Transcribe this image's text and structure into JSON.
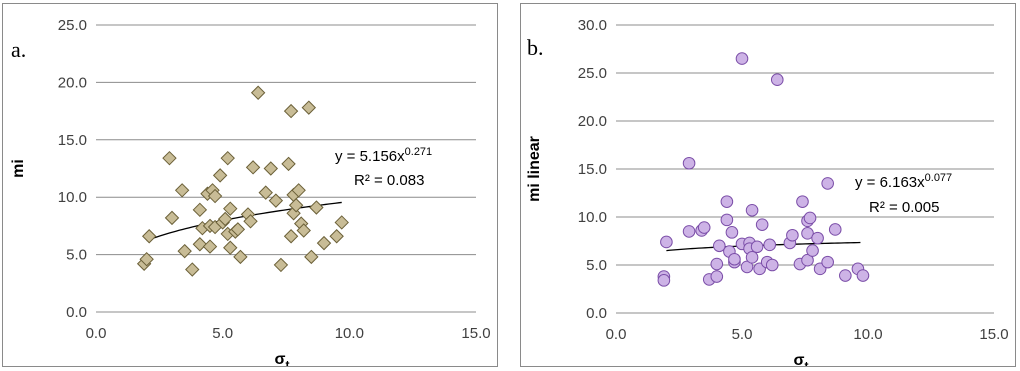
{
  "colors": {
    "grid": "#8c8c8c",
    "trend": "#000000",
    "marker_a_fill": "#c8bc96",
    "marker_a_stroke": "#6b6038",
    "marker_b_fill": "#cdb3e6",
    "marker_b_stroke": "#7b4ea8"
  },
  "chart_data": [
    {
      "type": "scatter",
      "panel_label": "a.",
      "xlabel": "σt",
      "xlabel_main": "σ",
      "xlabel_sub": "t",
      "ylabel": "mi",
      "xlim": [
        0,
        15
      ],
      "ylim": [
        0,
        25
      ],
      "x_ticks": [
        "0.0",
        "5.0",
        "10.0",
        "15.0"
      ],
      "y_ticks": [
        "0.0",
        "5.0",
        "10.0",
        "15.0",
        "20.0",
        "25.0"
      ],
      "grid": "horizontal",
      "marker": "diamond",
      "trendline": {
        "type": "power",
        "a": 5.156,
        "b": 0.271,
        "x_range": [
          2.0,
          9.7
        ]
      },
      "annotation": {
        "eq_prefix": "y = 5.156x",
        "eq_exp": "0.271",
        "r2": "R² = 0.083"
      },
      "points": [
        [
          1.9,
          4.2
        ],
        [
          2.0,
          4.6
        ],
        [
          2.1,
          6.6
        ],
        [
          2.9,
          13.4
        ],
        [
          3.0,
          8.2
        ],
        [
          3.4,
          10.6
        ],
        [
          3.5,
          5.3
        ],
        [
          3.8,
          3.7
        ],
        [
          4.1,
          5.9
        ],
        [
          4.1,
          8.9
        ],
        [
          4.2,
          7.3
        ],
        [
          4.4,
          10.3
        ],
        [
          4.5,
          5.7
        ],
        [
          4.5,
          7.5
        ],
        [
          4.6,
          10.6
        ],
        [
          4.7,
          10.1
        ],
        [
          4.7,
          7.4
        ],
        [
          4.9,
          11.9
        ],
        [
          5.0,
          7.8
        ],
        [
          5.1,
          8.1
        ],
        [
          5.2,
          6.8
        ],
        [
          5.2,
          13.4
        ],
        [
          5.3,
          5.6
        ],
        [
          5.3,
          9.0
        ],
        [
          5.5,
          7.0
        ],
        [
          5.6,
          7.2
        ],
        [
          5.7,
          4.8
        ],
        [
          6.0,
          8.5
        ],
        [
          6.1,
          7.9
        ],
        [
          6.2,
          12.6
        ],
        [
          6.4,
          19.1
        ],
        [
          6.7,
          10.4
        ],
        [
          6.9,
          12.5
        ],
        [
          7.1,
          9.7
        ],
        [
          7.3,
          4.1
        ],
        [
          7.6,
          12.9
        ],
        [
          7.7,
          17.5
        ],
        [
          7.7,
          6.6
        ],
        [
          7.8,
          10.2
        ],
        [
          7.8,
          8.6
        ],
        [
          7.9,
          9.3
        ],
        [
          8.0,
          10.6
        ],
        [
          8.1,
          7.7
        ],
        [
          8.2,
          7.1
        ],
        [
          8.4,
          17.8
        ],
        [
          8.5,
          4.8
        ],
        [
          8.7,
          9.1
        ],
        [
          9.0,
          6.0
        ],
        [
          9.5,
          6.6
        ],
        [
          9.7,
          7.8
        ]
      ]
    },
    {
      "type": "scatter",
      "panel_label": "b.",
      "xlabel": "σt",
      "xlabel_main": "σ",
      "xlabel_sub": "t",
      "ylabel": "mi linear",
      "xlim": [
        0,
        15
      ],
      "ylim": [
        0,
        30
      ],
      "x_ticks": [
        "0.0",
        "5.0",
        "10.0",
        "15.0"
      ],
      "y_ticks": [
        "0.0",
        "5.0",
        "10.0",
        "15.0",
        "20.0",
        "25.0",
        "30.0"
      ],
      "grid": "horizontal",
      "marker": "circle",
      "trendline": {
        "type": "power",
        "a": 6.163,
        "b": 0.077,
        "x_range": [
          2.0,
          9.7
        ]
      },
      "annotation": {
        "eq_prefix": "y = 6.163x",
        "eq_exp": "0.077",
        "r2": "R² = 0.005"
      },
      "points": [
        [
          1.9,
          3.8
        ],
        [
          1.9,
          3.4
        ],
        [
          2.0,
          7.4
        ],
        [
          2.9,
          15.6
        ],
        [
          2.9,
          8.5
        ],
        [
          3.4,
          8.6
        ],
        [
          3.5,
          8.9
        ],
        [
          3.7,
          3.5
        ],
        [
          4.0,
          5.1
        ],
        [
          4.0,
          3.8
        ],
        [
          4.1,
          7.0
        ],
        [
          4.4,
          11.6
        ],
        [
          4.4,
          9.7
        ],
        [
          4.5,
          6.4
        ],
        [
          4.6,
          8.4
        ],
        [
          4.7,
          5.3
        ],
        [
          4.7,
          5.6
        ],
        [
          5.0,
          7.2
        ],
        [
          5.0,
          26.5
        ],
        [
          5.2,
          4.8
        ],
        [
          5.3,
          7.3
        ],
        [
          5.3,
          6.7
        ],
        [
          5.4,
          10.7
        ],
        [
          5.4,
          5.8
        ],
        [
          5.6,
          6.9
        ],
        [
          5.7,
          4.6
        ],
        [
          5.8,
          9.2
        ],
        [
          6.0,
          5.3
        ],
        [
          6.1,
          7.1
        ],
        [
          6.2,
          5.0
        ],
        [
          6.4,
          24.3
        ],
        [
          6.9,
          7.3
        ],
        [
          7.0,
          8.1
        ],
        [
          7.3,
          5.1
        ],
        [
          7.4,
          11.6
        ],
        [
          7.6,
          5.5
        ],
        [
          7.6,
          8.3
        ],
        [
          7.6,
          9.6
        ],
        [
          7.7,
          9.9
        ],
        [
          7.8,
          6.5
        ],
        [
          8.0,
          7.8
        ],
        [
          8.1,
          4.6
        ],
        [
          8.4,
          13.5
        ],
        [
          8.4,
          5.3
        ],
        [
          8.7,
          8.7
        ],
        [
          9.1,
          3.9
        ],
        [
          9.6,
          4.6
        ],
        [
          9.8,
          3.9
        ]
      ]
    }
  ]
}
